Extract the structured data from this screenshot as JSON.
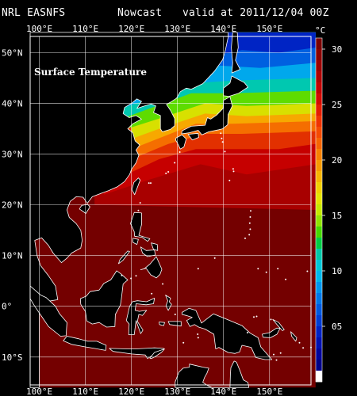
{
  "header": {
    "source": "NRL EASNFS",
    "product": "Nowcast",
    "valid": "valid at 2011/12/04 00Z"
  },
  "map": {
    "overlay_title": "Surface Temperature",
    "lon_labels": [
      "100°E",
      "110°E",
      "120°E",
      "130°E",
      "140°E",
      "150°E"
    ],
    "lat_labels": [
      "50°N",
      "40°N",
      "30°N",
      "20°N",
      "10°N",
      "0°",
      "10°S"
    ],
    "land_color": "#000000",
    "coastline_color": "#ffffff",
    "grid_color": "#ffffff"
  },
  "colorbar": {
    "unit": "°C",
    "tick_labels": [
      "30",
      "25",
      "20",
      "15",
      "10",
      "05"
    ],
    "range": [
      0,
      31
    ],
    "colors_top_to_bottom": [
      "#7a0000",
      "#8a0000",
      "#9c0000",
      "#ae0000",
      "#c20000",
      "#d40a00",
      "#e41c00",
      "#ef3200",
      "#f54a00",
      "#f76400",
      "#f78000",
      "#f79a00",
      "#f7b400",
      "#f2d000",
      "#e4e400",
      "#c4ea00",
      "#8ee400",
      "#44d800",
      "#00cc44",
      "#00c8a8",
      "#00c8d8",
      "#00b8ec",
      "#0096ee",
      "#0078e8",
      "#005ae0",
      "#003ed4",
      "#0022c4",
      "#0010b0",
      "#00049c",
      "#000088",
      "#ffffff"
    ]
  }
}
